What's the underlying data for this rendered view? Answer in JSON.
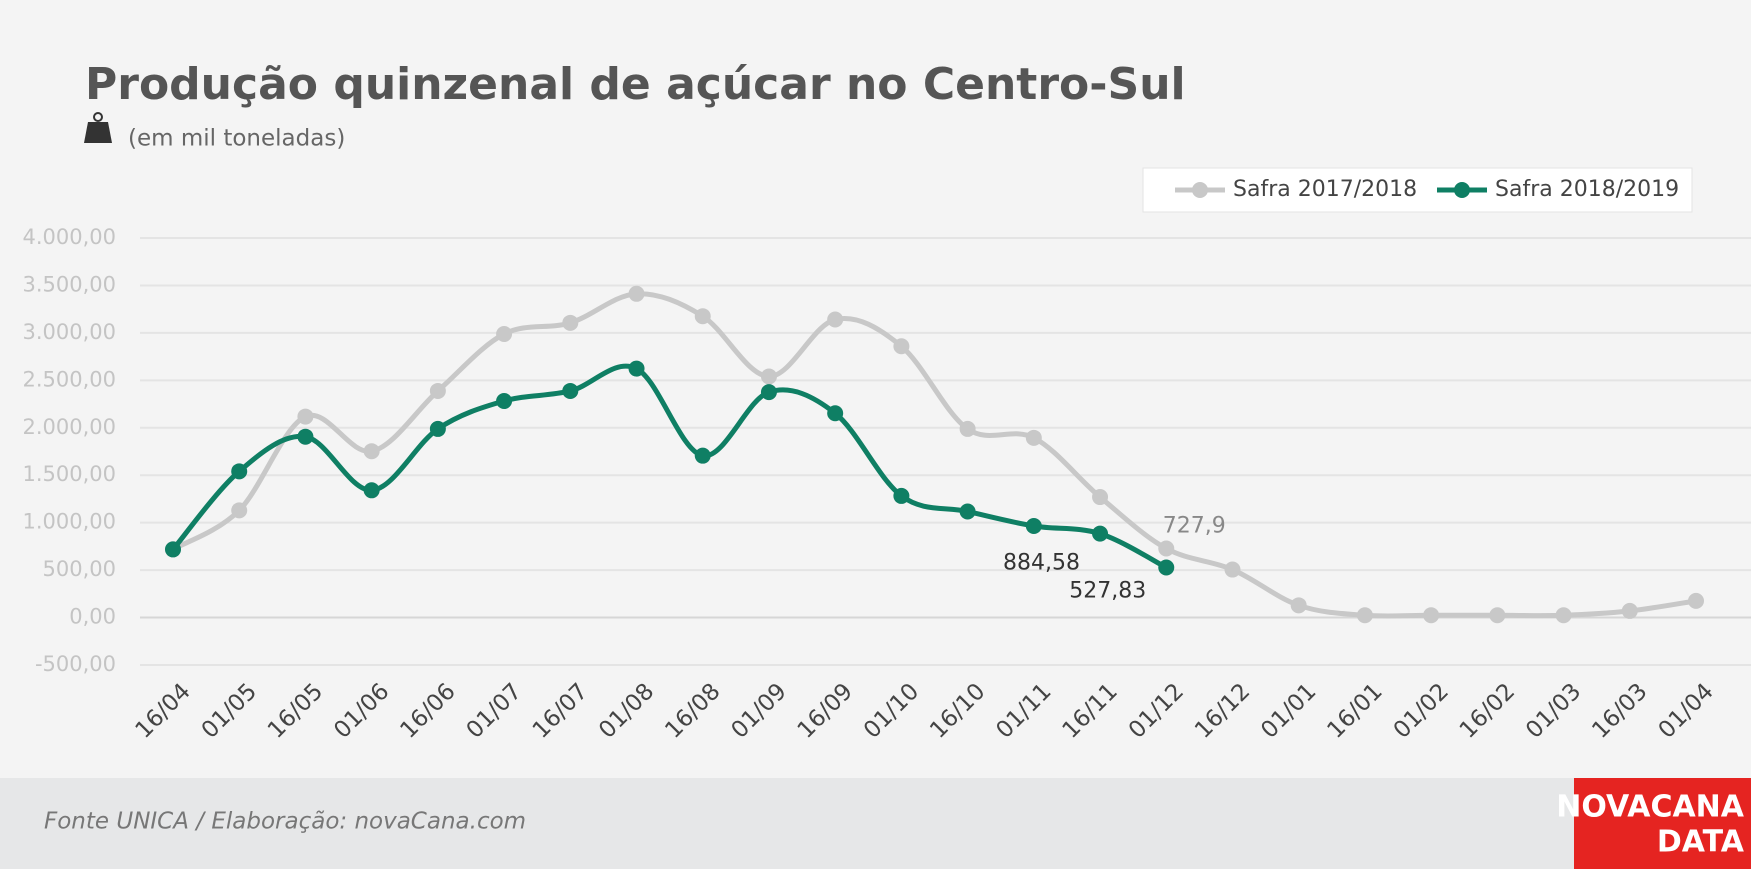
{
  "chart_data": {
    "type": "line",
    "title": "Produção quinzenal de açúcar no Centro-Sul",
    "subtitle": "(em mil toneladas)",
    "categories": [
      "16/04",
      "01/05",
      "16/05",
      "01/06",
      "16/06",
      "01/07",
      "16/07",
      "01/08",
      "16/08",
      "01/09",
      "16/09",
      "01/10",
      "16/10",
      "01/11",
      "16/11",
      "01/12",
      "16/12",
      "01/01",
      "16/01",
      "01/02",
      "16/02",
      "01/03",
      "16/03",
      "01/04"
    ],
    "series": [
      {
        "name": "Safra 2017/2018",
        "color": "#c8c8c8",
        "values": [
          720,
          1130,
          2118,
          1753,
          2388,
          2988,
          3106,
          3412,
          3176,
          2541,
          3141,
          2859,
          1988,
          1894,
          1270,
          727.9,
          506,
          129,
          24,
          24,
          24,
          24,
          70,
          176
        ],
        "value_labels": [
          null,
          null,
          null,
          null,
          null,
          null,
          null,
          null,
          null,
          null,
          null,
          null,
          null,
          null,
          null,
          "727,9",
          null,
          null,
          null,
          null,
          null,
          null,
          null,
          null
        ]
      },
      {
        "name": "Safra 2018/2019",
        "color": "#0f7f64",
        "values": [
          718,
          1541,
          1906,
          1341,
          1988,
          2282,
          2388,
          2624,
          1706,
          2376,
          2153,
          1282,
          1118,
          965,
          884.58,
          527.83,
          null,
          null,
          null,
          null,
          null,
          null,
          null,
          null
        ],
        "value_labels": [
          null,
          null,
          null,
          null,
          null,
          null,
          null,
          null,
          null,
          null,
          null,
          null,
          null,
          null,
          "884,58",
          "527,83",
          null,
          null,
          null,
          null,
          null,
          null,
          null,
          null
        ]
      }
    ],
    "ylim": [
      -500,
      4000
    ],
    "yticks": [
      {
        "value": -500,
        "label": "-500,00"
      },
      {
        "value": 0,
        "label": "0,00"
      },
      {
        "value": 500,
        "label": "500,00"
      },
      {
        "value": 1000,
        "label": "1.000,00"
      },
      {
        "value": 1500,
        "label": "1.500,00"
      },
      {
        "value": 2000,
        "label": "2.000,00"
      },
      {
        "value": 2500,
        "label": "2.500,00"
      },
      {
        "value": 3000,
        "label": "3.000,00"
      },
      {
        "value": 3500,
        "label": "3.500,00"
      },
      {
        "value": 4000,
        "label": "4.000,00"
      }
    ],
    "grid": true,
    "legend": "top-right"
  },
  "footer": {
    "source": "Fonte UNICA / Elaboração: novaCana.com",
    "logo": [
      "NOVACANA",
      "DATA"
    ]
  }
}
